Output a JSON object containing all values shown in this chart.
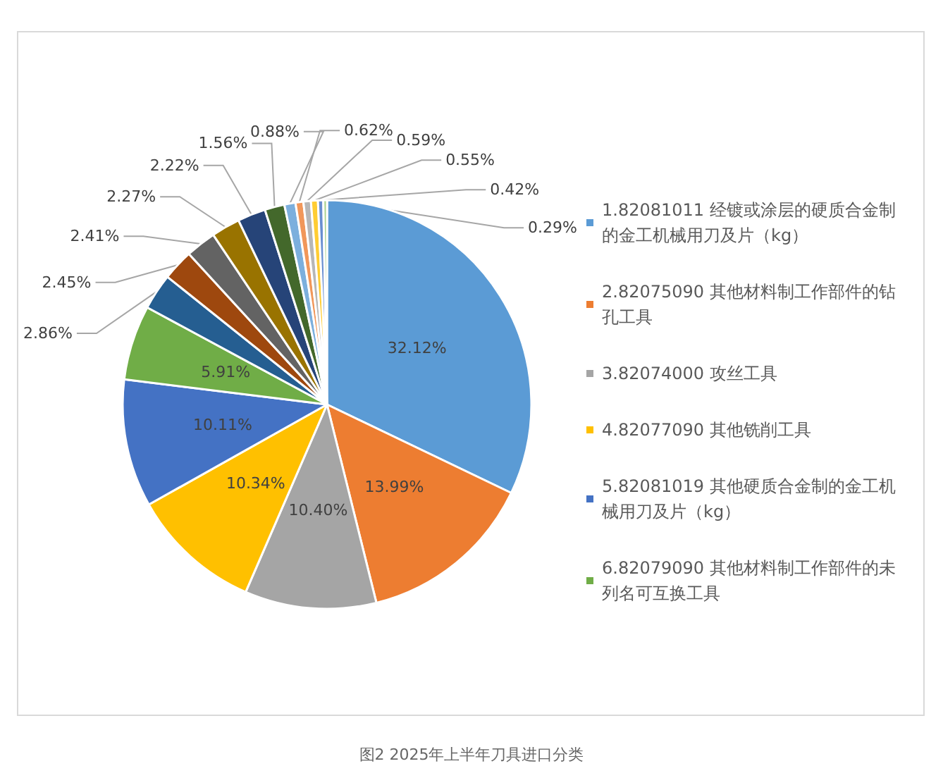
{
  "chart_data": {
    "type": "pie",
    "title": "图2 2025年上半年刀具进口分类",
    "categories": [
      "1.82081011 经镀或涂层的硬质合金制的金工机械用刀及片（kg）",
      "2.82075090 其他材料制工作部件的钻孔工具",
      "3.82074000 攻丝工具",
      "4.82077090 其他铣削工具",
      "5.82081019 其他硬质合金制的金工机械用刀及片（kg）",
      "6.82079090 其他材料制工作部件的未列名可互换工具",
      null,
      null,
      null,
      null,
      null,
      null,
      null,
      null,
      null,
      null,
      null,
      null
    ],
    "values": [
      32.12,
      13.99,
      10.4,
      10.34,
      10.11,
      5.91,
      2.86,
      2.45,
      2.41,
      2.27,
      2.22,
      1.56,
      0.88,
      0.62,
      0.59,
      0.55,
      0.42,
      0.29
    ],
    "colors": [
      "#5b9bd5",
      "#ed7d31",
      "#a5a5a5",
      "#ffc000",
      "#4472c4",
      "#70ad47",
      "#255e91",
      "#9e480e",
      "#636363",
      "#997300",
      "#264478",
      "#43682b",
      "#7cafdd",
      "#f1975a",
      "#b7b7b7",
      "#ffcd33",
      "#698ed0",
      "#a9d18e"
    ],
    "value_labels": [
      "32.12%",
      "13.99%",
      "10.40%",
      "10.34%",
      "10.11%",
      "5.91%",
      "2.86%",
      "2.45%",
      "2.41%",
      "2.27%",
      "2.22%",
      "1.56%",
      "0.88%",
      "0.62%",
      "0.59%",
      "0.55%",
      "0.42%",
      "0.29%"
    ],
    "legend": "right"
  }
}
